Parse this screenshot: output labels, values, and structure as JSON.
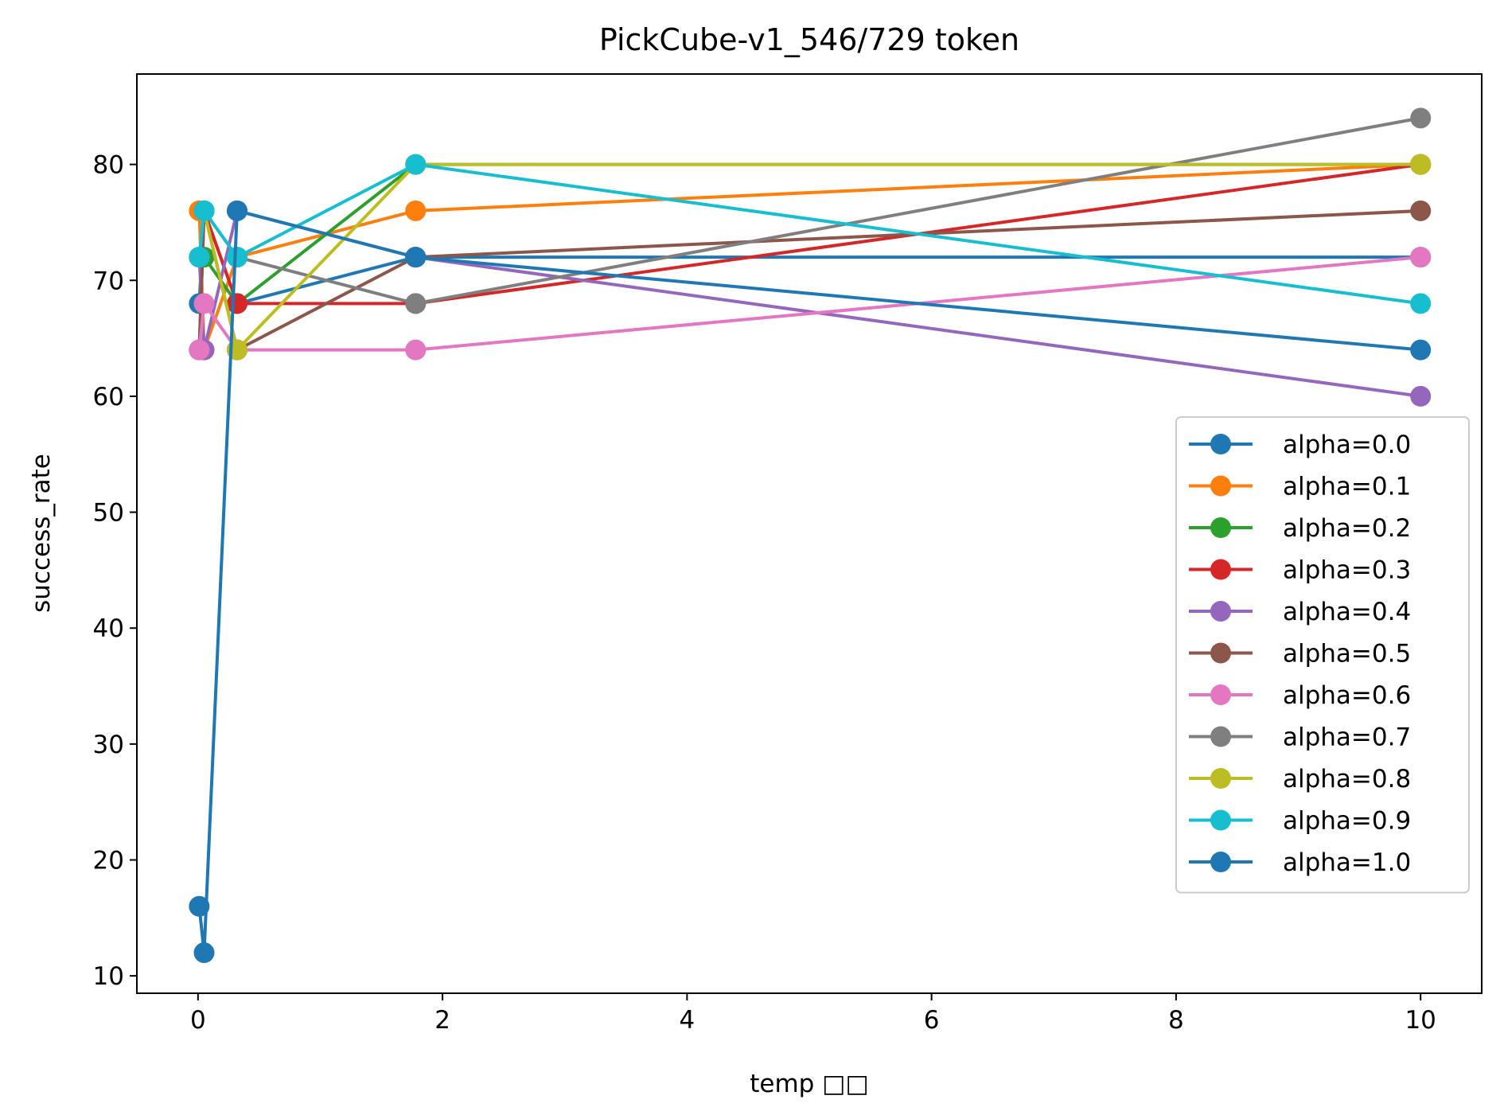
{
  "chart_data": {
    "type": "line",
    "title": "PickCube-v1_546/729 token",
    "xlabel": "temp □□",
    "ylabel": "success_rate",
    "xlim": [
      -0.5,
      10.5
    ],
    "ylim": [
      8.5,
      87.8
    ],
    "x_ticks": [
      0,
      2,
      4,
      6,
      8,
      10
    ],
    "y_ticks": [
      10,
      20,
      30,
      40,
      50,
      60,
      70,
      80
    ],
    "grid": false,
    "legend_position": "lower right",
    "x": [
      0.01,
      0.05,
      0.32,
      1.78,
      10
    ],
    "series": [
      {
        "name": "alpha=0.0",
        "color": "#1f77b4",
        "values": [
          68,
          76,
          68,
          72,
          72
        ]
      },
      {
        "name": "alpha=0.1",
        "color": "#ff7f0e",
        "values": [
          76,
          64,
          72,
          76,
          80
        ]
      },
      {
        "name": "alpha=0.2",
        "color": "#2ca02c",
        "values": [
          72,
          72,
          68,
          80,
          80
        ]
      },
      {
        "name": "alpha=0.3",
        "color": "#d62728",
        "values": [
          64,
          76,
          68,
          68,
          80
        ]
      },
      {
        "name": "alpha=0.4",
        "color": "#9467bd",
        "values": [
          72,
          64,
          76,
          72,
          60
        ]
      },
      {
        "name": "alpha=0.5",
        "color": "#8c564b",
        "values": [
          64,
          76,
          64,
          72,
          76
        ]
      },
      {
        "name": "alpha=0.6",
        "color": "#e377c2",
        "values": [
          64,
          68,
          64,
          64,
          72
        ]
      },
      {
        "name": "alpha=0.7",
        "color": "#7f7f7f",
        "values": [
          72,
          76,
          72,
          68,
          84
        ]
      },
      {
        "name": "alpha=0.8",
        "color": "#bcbd22",
        "values": [
          72,
          76,
          64,
          80,
          80
        ]
      },
      {
        "name": "alpha=0.9",
        "color": "#17becf",
        "values": [
          72,
          76,
          72,
          80,
          68
        ]
      },
      {
        "name": "alpha=1.0",
        "color": "#1f77b4",
        "values": [
          16,
          12,
          76,
          72,
          64
        ]
      }
    ]
  }
}
